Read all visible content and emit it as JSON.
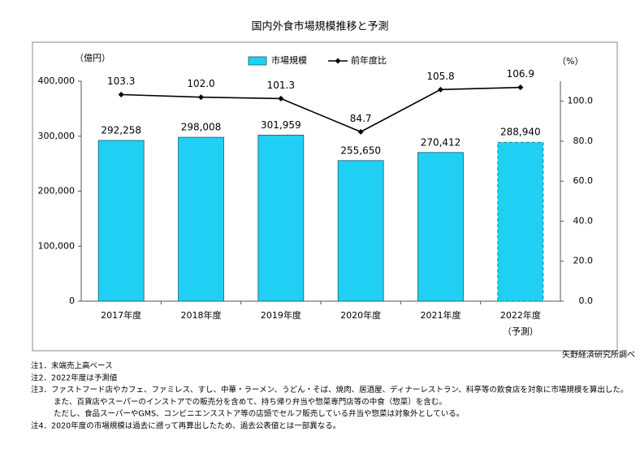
{
  "chart_data": {
    "type": "bar_line",
    "title": "国内外食市場規模推移と予測",
    "y_unit": "（億円）",
    "y2_unit": "（%）",
    "categories": [
      "2017年度",
      "2018年度",
      "2019年度",
      "2020年度",
      "2021年度",
      "2022年度"
    ],
    "category_note": "（予測）",
    "series": [
      {
        "name": "市場規模",
        "type": "bar",
        "color": "#1fd0f4",
        "values": [
          292258,
          298008,
          301959,
          255650,
          270412,
          288940
        ],
        "value_labels": [
          "292,258",
          "298,008",
          "301,959",
          "255,650",
          "270,412",
          "288,940"
        ],
        "dashed": [
          false,
          false,
          false,
          false,
          false,
          true
        ]
      },
      {
        "name": "前年度比",
        "type": "line",
        "axis": "y2",
        "color": "#000000",
        "values": [
          103.3,
          102.0,
          101.3,
          84.7,
          105.8,
          106.9
        ],
        "value_labels": [
          "103.3",
          "102.0",
          "101.3",
          "84.7",
          "105.8",
          "106.9"
        ]
      }
    ],
    "ylim": [
      0,
      400000
    ],
    "yticks": [
      {
        "value": 0,
        "label": "0"
      },
      {
        "value": 100000,
        "label": "100,000"
      },
      {
        "value": 200000,
        "label": "200,000"
      },
      {
        "value": 300000,
        "label": "300,000"
      },
      {
        "value": 400000,
        "label": "400,000"
      }
    ],
    "y2lim": [
      0,
      110
    ],
    "y2ticks": [
      {
        "value": 0,
        "label": "0.0"
      },
      {
        "value": 20,
        "label": "20.0"
      },
      {
        "value": 40,
        "label": "40.0"
      },
      {
        "value": 60,
        "label": "60.0"
      },
      {
        "value": 80,
        "label": "80.0"
      },
      {
        "value": 100,
        "label": "100.0"
      }
    ],
    "grid": false,
    "source": "矢野経済研究所調べ",
    "notes": [
      "注1．末端売上高ベース",
      "注2．2022年度は予測値",
      "注3．ファストフード店やカフェ、ファミレス、すし、中華・ラーメン、うどん・そば、焼肉、居酒屋、ディナーレストラン、料亭等の飲食店を対象に市場規模を算出した。",
      "また、百貨店やスーパーのインストアでの販売分を含めて、持ち帰り弁当や惣菜専門店等の中食（惣菜）を含む。",
      "ただし、食品スーパーやGMS、コンビニエンスストア等の店頭でセルフ販売している弁当や惣菜は対象外としている。",
      "注4．2020年度の市場規模は過去に遡って再算出したため、過去公表値とは一部異なる。"
    ]
  }
}
